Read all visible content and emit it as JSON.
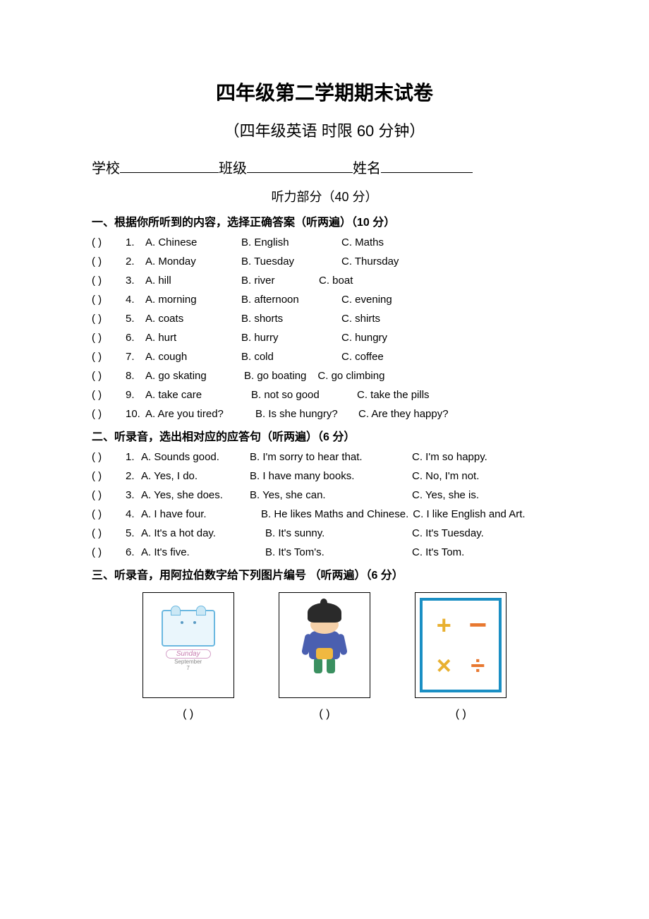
{
  "title": "四年级第二学期期末试卷",
  "subtitle": "（四年级英语   时限 60 分钟）",
  "info": {
    "school": "学校",
    "class": "班级",
    "name": "姓名"
  },
  "listening_header": "听力部分（40 分）",
  "part1": {
    "title": "一、根据你所听到的内容，选择正确答案（听两遍）（10 分）",
    "questions": [
      {
        "n": "1.",
        "a": "A. Chinese",
        "b": "B. English",
        "c": "C. Maths"
      },
      {
        "n": "2.",
        "a": "A. Monday",
        "b": "B. Tuesday",
        "c": "C. Thursday"
      },
      {
        "n": "3.",
        "a": "A. hill",
        "b": "B. river",
        "c": "C. boat"
      },
      {
        "n": "4.",
        "a": "A. morning",
        "b": "B. afternoon",
        "c": "C. evening"
      },
      {
        "n": "5.",
        "a": "A. coats",
        "b": "B. shorts",
        "c": "C. shirts"
      },
      {
        "n": "6.",
        "a": "A. hurt",
        "b": "B. hurry",
        "c": "C. hungry"
      },
      {
        "n": "7.",
        "a": "A. cough",
        "b": "B. cold",
        "c": "C. coffee"
      },
      {
        "n": "8.",
        "a": "A. go skating",
        "b": "B. go boating",
        "c": "C. go climbing"
      },
      {
        "n": "9.",
        "a": "A. take care",
        "b": "B. not so good",
        "c": "C. take the pills"
      },
      {
        "n": "10.",
        "a": "A. Are you tired?",
        "b": "B. Is she hungry?",
        "c": "C. Are they happy?"
      }
    ],
    "layout": {
      "col_a_width": 136,
      "col_b_width": 142,
      "special": {
        "2": {
          "b_width": 110
        },
        "7": {
          "a_width": 140,
          "b_width": 16,
          "c_gap": 0
        },
        "8": {
          "a_width": 150,
          "b_width": 150
        },
        "9": {
          "a_width": 156,
          "b_width": 146
        }
      }
    }
  },
  "part2": {
    "title": "二、听录音，选出相对应的应答句（听两遍）（6 分）",
    "questions": [
      {
        "n": "1.",
        "a": "A. Sounds good.",
        "b": "B. I'm sorry to hear that.",
        "c": "C. I'm so happy."
      },
      {
        "n": "2.",
        "a": "A. Yes, I do.",
        "b": "B. I have many books.",
        "c": "C. No, I'm not."
      },
      {
        "n": "3.",
        "a": "A. Yes, she does.",
        "b": "B. Yes, she can.",
        "c": "C. Yes, she is."
      },
      {
        "n": "4.",
        "a": "A. I have four.",
        "b": "B. He likes Maths and Chinese.",
        "c": "C. I like English and Art."
      },
      {
        "n": "5.",
        "a": "A. It's a hot day.",
        "b": "B. It's sunny.",
        "c": "C. It's Tuesday."
      },
      {
        "n": "6.",
        "a": "A. It's five.",
        "b": "B. It's Tom's.",
        "c": "C. It's Tom."
      }
    ]
  },
  "part3": {
    "title": "三、听录音，用阿拉伯数字给下列图片编号 （听两遍）（6 分）",
    "calendar_day": "Sunday",
    "calendar_month": "September",
    "calendar_date": "7",
    "answer_paren": "(          )"
  },
  "colors": {
    "text": "#000000",
    "bg": "#ffffff",
    "calendar_border": "#6bb8e0",
    "calendar_label": "#c77db0",
    "maths_border": "#1a8fc4",
    "sym_yellow": "#e8b030",
    "sym_orange": "#e87830",
    "boy_shirt": "#4a5fb0",
    "boy_pocket": "#f0b840",
    "boy_pants": "#3a9060"
  }
}
